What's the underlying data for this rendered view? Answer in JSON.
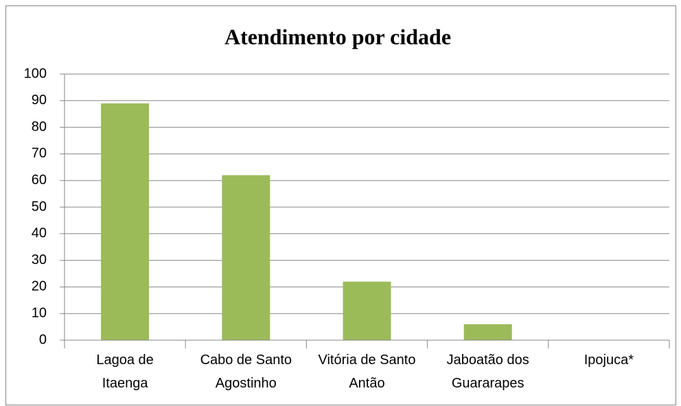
{
  "chart_data": {
    "type": "bar",
    "title": "Atendimento por cidade",
    "categories": [
      "Lagoa de\nItaenga",
      "Cabo de Santo\nAgostinho",
      "Vitória de Santo\nAntão",
      "Jaboatão dos\nGuararapes",
      "Ipojuca*"
    ],
    "values": [
      89,
      62,
      22,
      6,
      0
    ],
    "color": "#9bbb59",
    "ylim": [
      0,
      100
    ],
    "yticks": [
      0,
      10,
      20,
      30,
      40,
      50,
      60,
      70,
      80,
      90,
      100
    ],
    "grid": true
  }
}
